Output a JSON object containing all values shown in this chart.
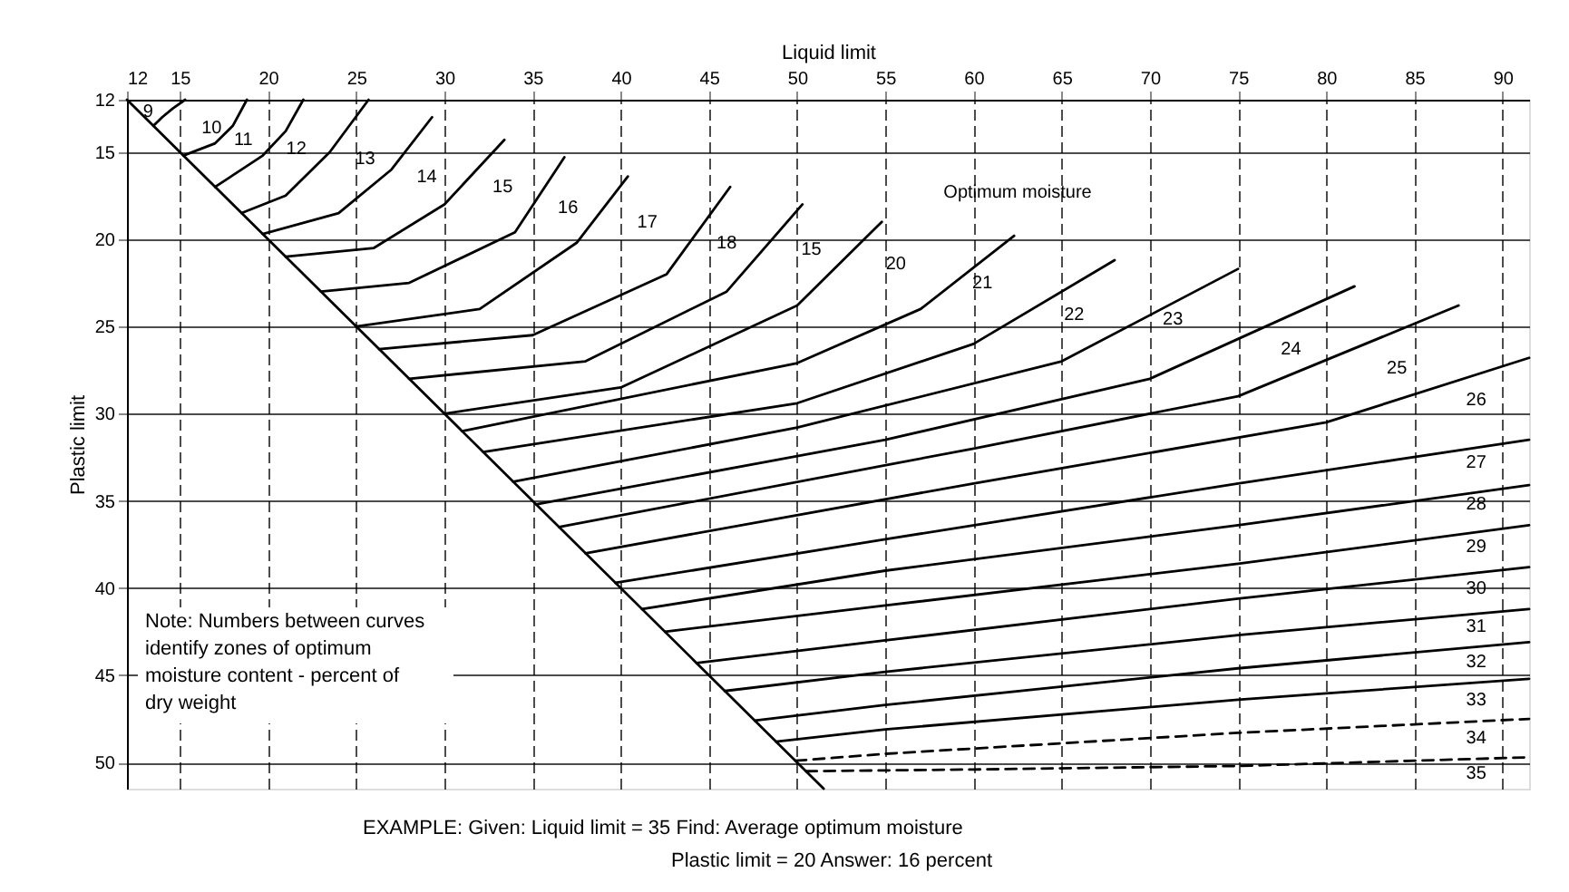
{
  "chart_data": {
    "type": "line",
    "xlabel": "Liquid limit",
    "ylabel": "Plastic limit",
    "xlim": [
      12,
      91.5
    ],
    "ylim": [
      51.5,
      12
    ],
    "xticks": [
      12,
      15,
      20,
      25,
      30,
      35,
      40,
      45,
      50,
      55,
      60,
      65,
      70,
      75,
      80,
      85,
      90
    ],
    "yticks": [
      12,
      15,
      20,
      25,
      30,
      35,
      40,
      45,
      50
    ],
    "grid": true,
    "marker": "none",
    "line_style": "solid",
    "series": [
      {
        "color": "#000000",
        "x": [
          12,
          51.5
        ],
        "values": [
          12,
          51.5
        ]
      },
      {
        "color": "#000000",
        "x": [
          13.5,
          14,
          14.6,
          15.3
        ],
        "values": [
          13.5,
          13,
          12.5,
          12
        ]
      },
      {
        "color": "#000000",
        "x": [
          15.2,
          17,
          18,
          18.8
        ],
        "values": [
          15.2,
          14.5,
          13.5,
          12
        ]
      },
      {
        "color": "#000000",
        "x": [
          17,
          19.7,
          21,
          22
        ],
        "values": [
          17,
          15.2,
          13.8,
          12
        ]
      },
      {
        "color": "#000000",
        "x": [
          18.5,
          21,
          23.5,
          25.7
        ],
        "values": [
          18.5,
          17.5,
          15,
          12
        ]
      },
      {
        "color": "#000000",
        "x": [
          19.7,
          24,
          27,
          29.3
        ],
        "values": [
          19.7,
          18.5,
          16,
          13
        ]
      },
      {
        "color": "#000000",
        "x": [
          21,
          26,
          30,
          33.4
        ],
        "values": [
          21,
          20.5,
          18,
          14.3
        ]
      },
      {
        "color": "#000000",
        "x": [
          23,
          28,
          34,
          36.8
        ],
        "values": [
          23,
          22.5,
          19.6,
          15.3
        ]
      },
      {
        "color": "#000000",
        "x": [
          25,
          32,
          37.5,
          40.4
        ],
        "values": [
          25,
          24,
          20.2,
          16.4
        ]
      },
      {
        "color": "#000000",
        "x": [
          26.3,
          35,
          42.6,
          46.2
        ],
        "values": [
          26.3,
          25.5,
          22,
          17
        ]
      },
      {
        "color": "#000000",
        "x": [
          28,
          38,
          46,
          50.3
        ],
        "values": [
          28,
          27,
          23,
          18
        ]
      },
      {
        "color": "#000000",
        "x": [
          30,
          40,
          50,
          54.8
        ],
        "values": [
          30,
          28.5,
          23.8,
          19
        ]
      },
      {
        "color": "#000000",
        "x": [
          31,
          50,
          57,
          62.3
        ],
        "values": [
          31,
          27.1,
          24,
          19.8
        ]
      },
      {
        "color": "#000000",
        "x": [
          32.2,
          50,
          60,
          68
        ],
        "values": [
          32.2,
          29.4,
          26,
          21.2
        ]
      },
      {
        "color": "#000000",
        "x": [
          33.9,
          50,
          65,
          75
        ],
        "values": [
          33.9,
          30.8,
          27,
          21.7
        ]
      },
      {
        "color": "#000000",
        "x": [
          35.2,
          55,
          70,
          81.6
        ],
        "values": [
          35.2,
          31.5,
          28,
          22.7
        ]
      },
      {
        "color": "#000000",
        "x": [
          36.5,
          60,
          75,
          87.5
        ],
        "values": [
          36.5,
          32,
          29,
          23.8
        ]
      },
      {
        "color": "#000000",
        "x": [
          38,
          60,
          80,
          91.5
        ],
        "values": [
          38,
          34,
          30.5,
          26.8
        ]
      },
      {
        "color": "#000000",
        "x": [
          39.7,
          55,
          75,
          91.5
        ],
        "values": [
          39.7,
          37.2,
          34,
          31.5
        ]
      },
      {
        "color": "#000000",
        "x": [
          41.2,
          55,
          75,
          91.5
        ],
        "values": [
          41.2,
          39,
          36.4,
          34.1
        ]
      },
      {
        "color": "#000000",
        "x": [
          42.5,
          55,
          75,
          91.5
        ],
        "values": [
          42.5,
          41,
          38.6,
          36.4
        ]
      },
      {
        "color": "#000000",
        "x": [
          44.3,
          55,
          75,
          91.5
        ],
        "values": [
          44.3,
          43,
          40.6,
          38.8
        ]
      },
      {
        "color": "#000000",
        "x": [
          45.9,
          55,
          75,
          91.5
        ],
        "values": [
          45.9,
          44.8,
          42.7,
          41.2
        ]
      },
      {
        "color": "#000000",
        "x": [
          47.6,
          55,
          75,
          91.5
        ],
        "values": [
          47.6,
          46.7,
          44.6,
          43.1
        ]
      },
      {
        "color": "#000000",
        "x": [
          48.8,
          55,
          75,
          91.5
        ],
        "values": [
          48.8,
          48.1,
          46.4,
          45.2
        ]
      },
      {
        "color": "#000000",
        "x": [
          49.9,
          55,
          75,
          91.5
        ],
        "values": [
          49.9,
          49.5,
          48.3,
          47.5
        ],
        "line_style": "dashed"
      },
      {
        "color": "#000000",
        "x": [
          50.5,
          60,
          75,
          91.5
        ],
        "values": [
          50.5,
          50.4,
          50.2,
          49.7
        ],
        "line_style": "dashed"
      }
    ],
    "annotations": [
      "9",
      "10",
      "11",
      "12",
      "13",
      "14",
      "15",
      "16",
      "17",
      "18",
      "15",
      "20",
      "21",
      "22",
      "23",
      "24",
      "25",
      "26",
      "27",
      "28",
      "29",
      "30",
      "31",
      "32",
      "33",
      "34",
      "35",
      "Optimum moisture",
      "Note: Numbers between curves identify zones of optimum moisture content - percent of dry weight",
      "EXAMPLE: Given:     Liquid limit = 35     Find: Average optimum moisture",
      "Plastic limit = 20     Answer: 16 percent"
    ]
  }
}
